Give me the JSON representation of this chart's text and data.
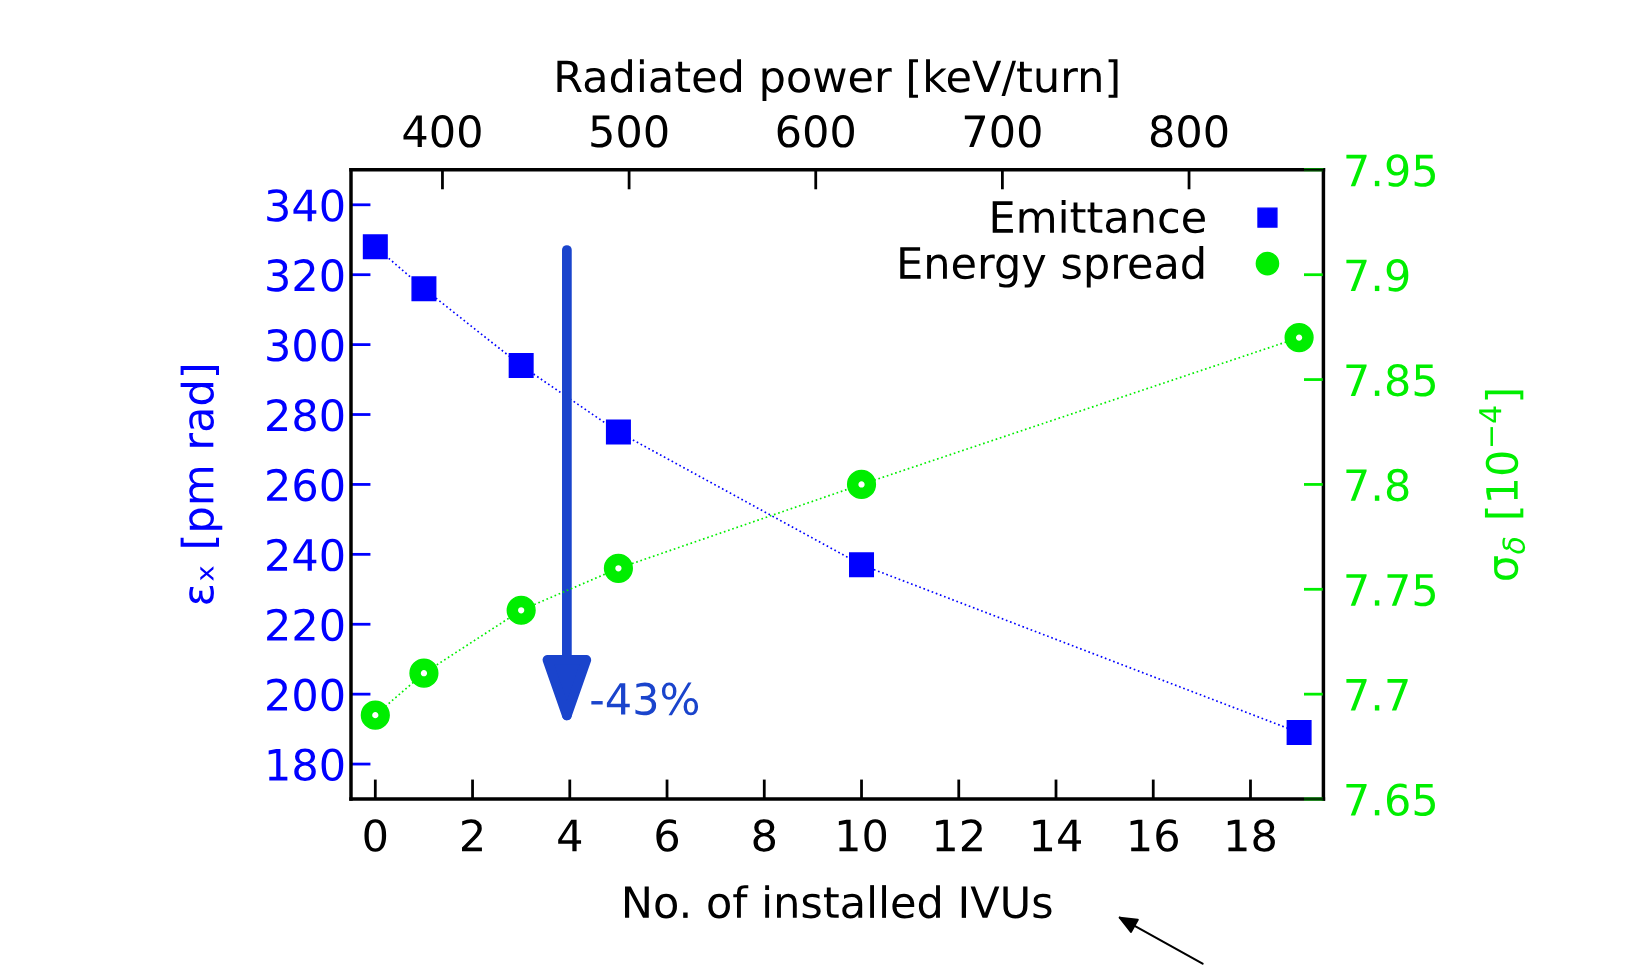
{
  "chart_data": {
    "type": "line",
    "xlabel": "No. of installed IVUs",
    "ylabel": "εₓ [pm rad]",
    "y2label": "σ$_{δ}$ [10$^{−4}$]",
    "x2label": "Radiated power [keV/turn]",
    "x": [
      0,
      1,
      3,
      5,
      10,
      19
    ],
    "series": [
      {
        "name": "Emittance",
        "color": "#0000ff",
        "values": [
          328,
          316,
          294,
          275,
          237,
          189
        ],
        "marker": "square",
        "line_style": "dotted"
      },
      {
        "name": "Energy spread",
        "color": "#00ee00",
        "values": [
          7.69,
          7.71,
          7.74,
          7.76,
          7.8,
          7.87
        ],
        "axis": "y2",
        "marker": "circle",
        "line_style": "dotted"
      }
    ],
    "xlim": [
      -0.5,
      19.5
    ],
    "xticks": [
      0,
      2,
      4,
      6,
      8,
      10,
      12,
      14,
      16,
      18
    ],
    "ylim": [
      170,
      350
    ],
    "yticks": [
      180,
      200,
      220,
      240,
      260,
      280,
      300,
      320,
      340
    ],
    "y2lim": [
      7.65,
      7.95
    ],
    "y2ticks": [
      7.65,
      7.7,
      7.75,
      7.8,
      7.85,
      7.9,
      7.95
    ],
    "x2lim": [
      351,
      872
    ],
    "x2ticks": [
      400,
      500,
      600,
      700,
      800
    ],
    "annotations": [
      "-43%"
    ],
    "legend": "top right",
    "grid": false
  }
}
